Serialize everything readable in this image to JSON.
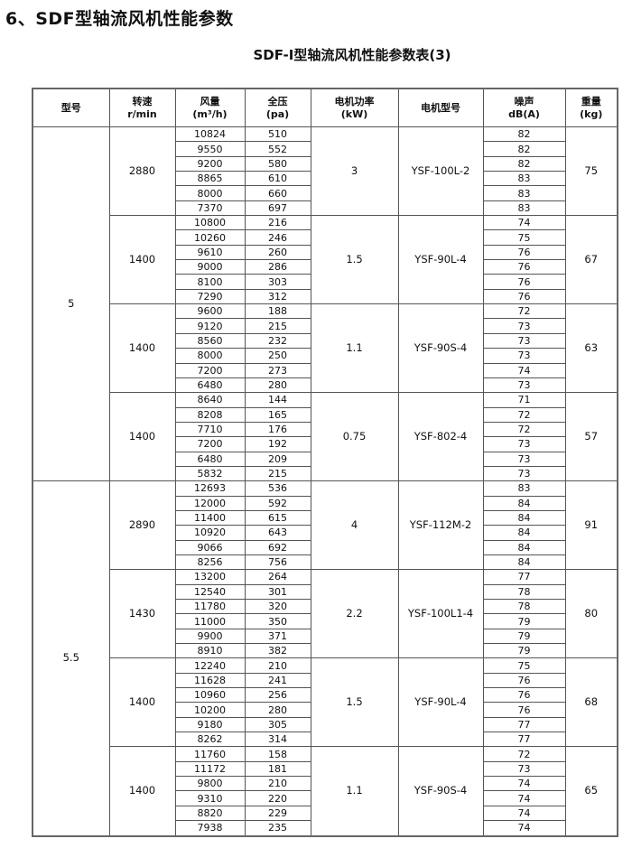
{
  "title": "6、SDF型轴流风机性能参数",
  "subtitle": "SDF-I型轴流风机性能参数表(3)",
  "headers": [
    {
      "line1": "型号",
      "line2": ""
    },
    {
      "line1": "转速",
      "line2": "r/min"
    },
    {
      "line1": "风量",
      "line2": "(m³/h)"
    },
    {
      "line1": "全压",
      "line2": "(pa)"
    },
    {
      "line1": "电机功率",
      "line2": "(kW)"
    },
    {
      "line1": "电机型号",
      "line2": ""
    },
    {
      "line1": "噪声",
      "line2": "dB(A)"
    },
    {
      "line1": "重量",
      "line2": "(kg)"
    }
  ],
  "groups": [
    {
      "model": "5",
      "subgroups": [
        {
          "speed": "2880",
          "power": "3",
          "motor": "YSF-100L-2",
          "weight": "75",
          "rows": [
            [
              "10824",
              "510",
              "82"
            ],
            [
              "9550",
              "552",
              "82"
            ],
            [
              "9200",
              "580",
              "82"
            ],
            [
              "8865",
              "610",
              "83"
            ],
            [
              "8000",
              "660",
              "83"
            ],
            [
              "7370",
              "697",
              "83"
            ]
          ]
        },
        {
          "speed": "1400",
          "power": "1.5",
          "motor": "YSF-90L-4",
          "weight": "67",
          "rows": [
            [
              "10800",
              "216",
              "74"
            ],
            [
              "10260",
              "246",
              "75"
            ],
            [
              "9610",
              "260",
              "76"
            ],
            [
              "9000",
              "286",
              "76"
            ],
            [
              "8100",
              "303",
              "76"
            ],
            [
              "7290",
              "312",
              "76"
            ]
          ]
        },
        {
          "speed": "1400",
          "power": "1.1",
          "motor": "YSF-90S-4",
          "weight": "63",
          "rows": [
            [
              "9600",
              "188",
              "72"
            ],
            [
              "9120",
              "215",
              "73"
            ],
            [
              "8560",
              "232",
              "73"
            ],
            [
              "8000",
              "250",
              "73"
            ],
            [
              "7200",
              "273",
              "74"
            ],
            [
              "6480",
              "280",
              "73"
            ]
          ]
        },
        {
          "speed": "1400",
          "power": "0.75",
          "motor": "YSF-802-4",
          "weight": "57",
          "rows": [
            [
              "8640",
              "144",
              "71"
            ],
            [
              "8208",
              "165",
              "72"
            ],
            [
              "7710",
              "176",
              "72"
            ],
            [
              "7200",
              "192",
              "73"
            ],
            [
              "6480",
              "209",
              "73"
            ],
            [
              "5832",
              "215",
              "73"
            ]
          ]
        }
      ]
    },
    {
      "model": "5.5",
      "subgroups": [
        {
          "speed": "2890",
          "power": "4",
          "motor": "YSF-112M-2",
          "weight": "91",
          "rows": [
            [
              "12693",
              "536",
              "83"
            ],
            [
              "12000",
              "592",
              "84"
            ],
            [
              "11400",
              "615",
              "84"
            ],
            [
              "10920",
              "643",
              "84"
            ],
            [
              "9066",
              "692",
              "84"
            ],
            [
              "8256",
              "756",
              "84"
            ]
          ]
        },
        {
          "speed": "1430",
          "power": "2.2",
          "motor": "YSF-100L1-4",
          "weight": "80",
          "rows": [
            [
              "13200",
              "264",
              "77"
            ],
            [
              "12540",
              "301",
              "78"
            ],
            [
              "11780",
              "320",
              "78"
            ],
            [
              "11000",
              "350",
              "79"
            ],
            [
              "9900",
              "371",
              "79"
            ],
            [
              "8910",
              "382",
              "79"
            ]
          ]
        },
        {
          "speed": "1400",
          "power": "1.5",
          "motor": "YSF-90L-4",
          "weight": "68",
          "rows": [
            [
              "12240",
              "210",
              "75"
            ],
            [
              "11628",
              "241",
              "76"
            ],
            [
              "10960",
              "256",
              "76"
            ],
            [
              "10200",
              "280",
              "76"
            ],
            [
              "9180",
              "305",
              "77"
            ],
            [
              "8262",
              "314",
              "77"
            ]
          ]
        },
        {
          "speed": "1400",
          "power": "1.1",
          "motor": "YSF-90S-4",
          "weight": "65",
          "rows": [
            [
              "11760",
              "158",
              "72"
            ],
            [
              "11172",
              "181",
              "73"
            ],
            [
              "9800",
              "210",
              "74"
            ],
            [
              "9310",
              "220",
              "74"
            ],
            [
              "8820",
              "229",
              "74"
            ],
            [
              "7938",
              "235",
              "74"
            ]
          ]
        }
      ]
    }
  ]
}
